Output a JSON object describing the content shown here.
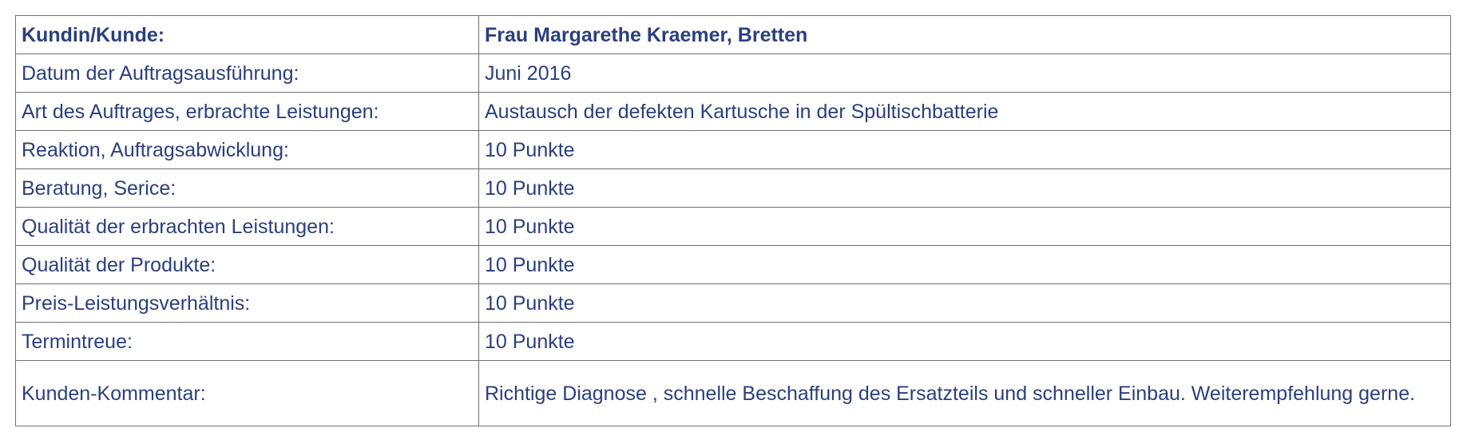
{
  "rows": [
    {
      "label": "Kundin/Kunde:",
      "value": "Frau Margarethe Kraemer, Bretten",
      "bold": true
    },
    {
      "label": "Datum der Auftragsausführung:",
      "value": "Juni 2016"
    },
    {
      "label": "Art des Auftrages, erbrachte Leistungen:",
      "value": "Austausch der defekten Kartusche in der Spültischbatterie"
    },
    {
      "label": "Reaktion, Auftragsabwicklung:",
      "value": "10 Punkte"
    },
    {
      "label": "Beratung, Serice:",
      "value": "10 Punkte"
    },
    {
      "label": "Qualität der erbrachten Leistungen:",
      "value": "10 Punkte"
    },
    {
      "label": "Qualität der Produkte:",
      "value": "10 Punkte"
    },
    {
      "label": "Preis-Leistungsverhältnis:",
      "value": "10 Punkte"
    },
    {
      "label": "Termintreue:",
      "value": "10 Punkte"
    },
    {
      "label": "Kunden-Kommentar:",
      "value": "Richtige Diagnose , schnelle Beschaffung des Ersatzteils und schneller Einbau. Weiterempfehlung gerne."
    }
  ],
  "colors": {
    "text": "#2b3f7e",
    "border": "#6f6f6f",
    "background": "#ffffff"
  }
}
